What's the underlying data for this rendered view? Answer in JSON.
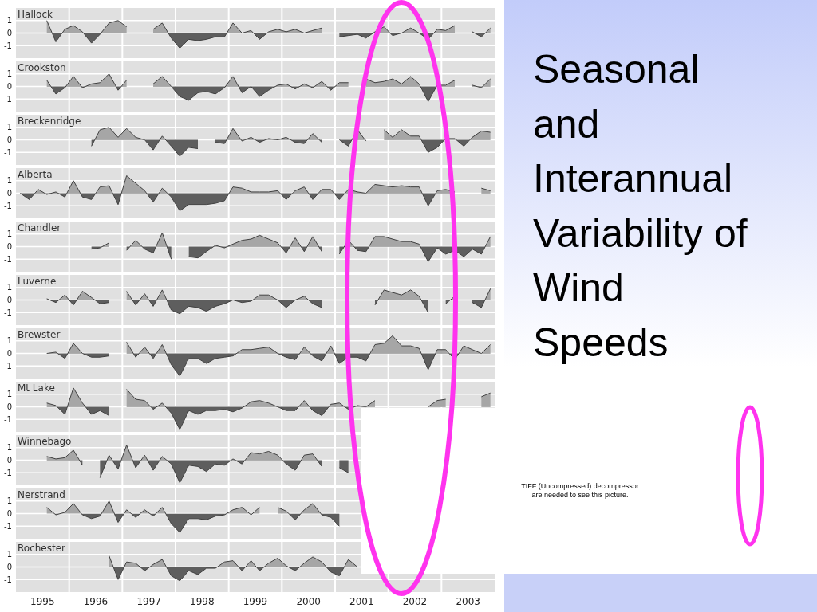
{
  "chart_data": [
    {
      "type": "area",
      "title": "Hallock",
      "xlim": [
        1995,
        2004
      ],
      "ylim": [
        -2,
        2
      ],
      "yticks": [
        -1,
        0,
        1
      ],
      "grid": true,
      "tick_labels": "y",
      "xticks": [
        {
          "value": 1996,
          "label": null
        },
        {
          "value": 1997,
          "label": null
        },
        {
          "value": 1998,
          "label": null
        },
        {
          "value": 1999,
          "label": null
        },
        {
          "value": 2000,
          "label": null
        },
        {
          "value": 2001,
          "label": null
        },
        {
          "value": 2002,
          "label": null
        },
        {
          "value": 2003,
          "label": null
        }
      ],
      "x": [
        1995.58,
        1995.75,
        1995.92,
        1996.08,
        1996.25,
        1996.42,
        1996.58,
        1996.75,
        1996.92,
        1997.08,
        1997.25,
        1997.42,
        1997.58,
        1997.75,
        1997.92,
        1998.08,
        1998.25,
        1998.42,
        1998.58,
        1998.75,
        1998.92,
        1999.08,
        1999.25,
        1999.42,
        1999.58,
        1999.75,
        1999.92,
        2000.08,
        2000.25,
        2000.42,
        2000.58,
        2000.75,
        2000.92,
        2001.08,
        2001.25,
        2001.42,
        2001.58,
        2001.75,
        2001.92,
        2002.08,
        2002.25,
        2002.42,
        2002.58,
        2002.75,
        2002.92,
        2003.08,
        2003.25,
        2003.42,
        2003.58,
        2003.75,
        2003.92
      ],
      "series": [
        {
          "color": "#a6a6a6",
          "values": [
            1.0,
            -0.7,
            0.3,
            0.6,
            0.1,
            -0.8,
            -0.1,
            0.8,
            1.0,
            0.5,
            null,
            null,
            0.3,
            0.8,
            -0.4,
            -1.2,
            -0.5,
            -0.6,
            -0.5,
            -0.3,
            -0.3,
            0.8,
            0.0,
            0.2,
            -0.5,
            0.1,
            0.3,
            0.1,
            0.3,
            0.0,
            0.2,
            0.4,
            null,
            -0.3,
            -0.2,
            -0.1,
            -0.4,
            0.1,
            0.5,
            -0.2,
            0.0,
            0.4,
            0.0,
            -0.5,
            0.3,
            0.2,
            0.6,
            null,
            0.1,
            -0.3,
            0.4
          ]
        }
      ]
    },
    {
      "type": "area",
      "title": "Crookston",
      "xlim": [
        1995,
        2004
      ],
      "ylim": [
        -2,
        2
      ],
      "yticks": [
        -1,
        0,
        1
      ],
      "grid": true,
      "tick_labels": "y",
      "xticks": [
        {
          "value": 1996,
          "label": null
        },
        {
          "value": 1997,
          "label": null
        },
        {
          "value": 1998,
          "label": null
        },
        {
          "value": 1999,
          "label": null
        },
        {
          "value": 2000,
          "label": null
        },
        {
          "value": 2001,
          "label": null
        },
        {
          "value": 2002,
          "label": null
        },
        {
          "value": 2003,
          "label": null
        }
      ],
      "x": [
        1995.58,
        1995.75,
        1995.92,
        1996.08,
        1996.25,
        1996.42,
        1996.58,
        1996.75,
        1996.92,
        1997.08,
        1997.25,
        1997.42,
        1997.58,
        1997.75,
        1997.92,
        1998.08,
        1998.25,
        1998.42,
        1998.58,
        1998.75,
        1998.92,
        1999.08,
        1999.25,
        1999.42,
        1999.58,
        1999.75,
        1999.92,
        2000.08,
        2000.25,
        2000.42,
        2000.58,
        2000.75,
        2000.92,
        2001.08,
        2001.25,
        2001.42,
        2001.58,
        2001.75,
        2001.92,
        2002.08,
        2002.25,
        2002.42,
        2002.58,
        2002.75,
        2002.92,
        2003.08,
        2003.25,
        2003.42,
        2003.58,
        2003.75,
        2003.92
      ],
      "series": [
        {
          "color": "#a6a6a6",
          "values": [
            0.5,
            -0.6,
            -0.1,
            0.8,
            -0.1,
            0.2,
            0.3,
            1.0,
            -0.3,
            0.5,
            null,
            null,
            0.2,
            0.8,
            0.0,
            -0.8,
            -1.1,
            -0.5,
            -0.4,
            -0.6,
            -0.1,
            0.8,
            -0.5,
            0.0,
            -0.8,
            -0.3,
            0.1,
            0.2,
            -0.2,
            0.2,
            -0.1,
            0.4,
            -0.3,
            0.3,
            0.3,
            null,
            0.6,
            0.3,
            0.4,
            0.6,
            0.2,
            0.8,
            0.2,
            -1.2,
            0.1,
            0.1,
            0.5,
            null,
            0.1,
            -0.1,
            0.6
          ]
        }
      ]
    },
    {
      "type": "area",
      "title": "Breckenridge",
      "xlim": [
        1995,
        2004
      ],
      "ylim": [
        -2,
        2
      ],
      "yticks": [
        -1,
        0,
        1
      ],
      "grid": true,
      "tick_labels": "y",
      "xticks": [
        {
          "value": 1996,
          "label": null
        },
        {
          "value": 1997,
          "label": null
        },
        {
          "value": 1998,
          "label": null
        },
        {
          "value": 1999,
          "label": null
        },
        {
          "value": 2000,
          "label": null
        },
        {
          "value": 2001,
          "label": null
        },
        {
          "value": 2002,
          "label": null
        },
        {
          "value": 2003,
          "label": null
        }
      ],
      "x": [
        1996.42,
        1996.58,
        1996.75,
        1996.92,
        1997.08,
        1997.25,
        1997.42,
        1997.58,
        1997.75,
        1997.92,
        1998.08,
        1998.25,
        1998.42,
        1998.58,
        1998.75,
        1998.92,
        1999.08,
        1999.25,
        1999.42,
        1999.58,
        1999.75,
        1999.92,
        2000.08,
        2000.25,
        2000.42,
        2000.58,
        2000.75,
        2000.92,
        2001.08,
        2001.25,
        2001.42,
        2001.58,
        2001.75,
        2001.92,
        2002.08,
        2002.25,
        2002.42,
        2002.58,
        2002.75,
        2002.92,
        2003.08,
        2003.25,
        2003.42,
        2003.58,
        2003.75,
        2003.92
      ],
      "series": [
        {
          "color": "#a6a6a6",
          "values": [
            -0.5,
            0.8,
            1.0,
            0.2,
            0.9,
            0.2,
            0.0,
            -0.8,
            0.3,
            -0.5,
            -1.3,
            -0.6,
            -0.7,
            null,
            -0.2,
            -0.3,
            0.9,
            -0.1,
            0.2,
            -0.2,
            0.1,
            0.0,
            0.2,
            -0.2,
            -0.3,
            0.5,
            -0.2,
            null,
            0.0,
            -0.5,
            0.8,
            -0.1,
            null,
            0.8,
            0.2,
            0.8,
            0.3,
            0.3,
            -1.0,
            -0.6,
            0.1,
            0.1,
            -0.5,
            0.2,
            0.7,
            0.6
          ]
        }
      ]
    },
    {
      "type": "area",
      "title": "Alberta",
      "xlim": [
        1995,
        2004
      ],
      "ylim": [
        -2,
        2
      ],
      "yticks": [
        -1,
        0,
        1
      ],
      "grid": true,
      "tick_labels": "y",
      "xticks": [
        {
          "value": 1996,
          "label": null
        },
        {
          "value": 1997,
          "label": null
        },
        {
          "value": 1998,
          "label": null
        },
        {
          "value": 1999,
          "label": null
        },
        {
          "value": 2000,
          "label": null
        },
        {
          "value": 2001,
          "label": null
        },
        {
          "value": 2002,
          "label": null
        },
        {
          "value": 2003,
          "label": null
        }
      ],
      "x": [
        1995.08,
        1995.25,
        1995.42,
        1995.58,
        1995.75,
        1995.92,
        1996.08,
        1996.25,
        1996.42,
        1996.58,
        1996.75,
        1996.92,
        1997.08,
        1997.25,
        1997.42,
        1997.58,
        1997.75,
        1997.92,
        1998.08,
        1998.25,
        1998.42,
        1998.58,
        1998.75,
        1998.92,
        1999.08,
        1999.25,
        1999.42,
        1999.58,
        1999.75,
        1999.92,
        2000.08,
        2000.25,
        2000.42,
        2000.58,
        2000.75,
        2000.92,
        2001.08,
        2001.25,
        2001.42,
        2001.58,
        2001.75,
        2001.92,
        2002.08,
        2002.25,
        2002.42,
        2002.58,
        2002.75,
        2002.92,
        2003.08,
        2003.25,
        2003.42,
        2003.58,
        2003.75,
        2003.92
      ],
      "series": [
        {
          "color": "#a6a6a6",
          "values": [
            0.0,
            -0.5,
            0.3,
            -0.1,
            0.1,
            -0.3,
            1.0,
            -0.3,
            -0.5,
            0.5,
            0.6,
            -0.9,
            1.4,
            0.8,
            0.2,
            -0.7,
            0.4,
            -0.3,
            -1.4,
            -0.9,
            -0.9,
            -0.9,
            -0.8,
            -0.6,
            0.5,
            0.4,
            0.1,
            0.1,
            0.1,
            0.2,
            -0.5,
            0.2,
            0.5,
            -0.5,
            0.3,
            0.3,
            -0.5,
            0.3,
            0.1,
            0.0,
            0.7,
            0.6,
            0.5,
            0.6,
            0.5,
            0.5,
            -1.0,
            0.2,
            0.3,
            0.1,
            null,
            null,
            0.4,
            0.2
          ]
        }
      ]
    },
    {
      "type": "area",
      "title": "Chandler",
      "xlim": [
        1995,
        2004
      ],
      "ylim": [
        -2,
        2
      ],
      "yticks": [
        -1,
        0,
        1
      ],
      "grid": true,
      "tick_labels": "y",
      "xticks": [
        {
          "value": 1996,
          "label": null
        },
        {
          "value": 1997,
          "label": null
        },
        {
          "value": 1998,
          "label": null
        },
        {
          "value": 1999,
          "label": null
        },
        {
          "value": 2000,
          "label": null
        },
        {
          "value": 2001,
          "label": null
        },
        {
          "value": 2002,
          "label": null
        },
        {
          "value": 2003,
          "label": null
        }
      ],
      "x": [
        1996.42,
        1996.58,
        1996.75,
        1996.92,
        1997.08,
        1997.25,
        1997.42,
        1997.58,
        1997.75,
        1997.92,
        1998.08,
        1998.25,
        1998.42,
        1998.58,
        1998.75,
        1998.92,
        1999.08,
        1999.25,
        1999.42,
        1999.58,
        1999.75,
        1999.92,
        2000.08,
        2000.25,
        2000.42,
        2000.58,
        2000.75,
        2000.92,
        2001.08,
        2001.25,
        2001.42,
        2001.58,
        2001.75,
        2001.92,
        2002.08,
        2002.25,
        2002.42,
        2002.58,
        2002.75,
        2002.92,
        2003.08,
        2003.25,
        2003.42,
        2003.58,
        2003.75,
        2003.92
      ],
      "series": [
        {
          "color": "#a6a6a6",
          "values": [
            -0.2,
            -0.1,
            0.3,
            null,
            -0.3,
            0.5,
            -0.2,
            -0.5,
            1.1,
            -1.0,
            null,
            -0.8,
            -0.9,
            -0.4,
            0.1,
            -0.1,
            0.2,
            0.5,
            0.6,
            0.9,
            0.6,
            0.3,
            -0.5,
            0.7,
            -0.4,
            0.8,
            -0.4,
            null,
            -0.6,
            0.5,
            -0.3,
            -0.4,
            0.8,
            0.8,
            0.6,
            0.4,
            0.4,
            0.2,
            -1.2,
            -0.1,
            -0.6,
            -0.3,
            -0.8,
            -0.2,
            -0.6,
            0.8
          ]
        }
      ]
    },
    {
      "type": "area",
      "title": "Luverne",
      "xlim": [
        1995,
        2004
      ],
      "ylim": [
        -2,
        2
      ],
      "yticks": [
        -1,
        0,
        1
      ],
      "grid": true,
      "tick_labels": "y",
      "xticks": [
        {
          "value": 1996,
          "label": null
        },
        {
          "value": 1997,
          "label": null
        },
        {
          "value": 1998,
          "label": null
        },
        {
          "value": 1999,
          "label": null
        },
        {
          "value": 2000,
          "label": null
        },
        {
          "value": 2001,
          "label": null
        },
        {
          "value": 2002,
          "label": null
        },
        {
          "value": 2003,
          "label": null
        }
      ],
      "x": [
        1995.58,
        1995.75,
        1995.92,
        1996.08,
        1996.25,
        1996.42,
        1996.58,
        1996.75,
        1996.92,
        1997.08,
        1997.25,
        1997.42,
        1997.58,
        1997.75,
        1997.92,
        1998.08,
        1998.25,
        1998.42,
        1998.58,
        1998.75,
        1998.92,
        1999.08,
        1999.25,
        1999.42,
        1999.58,
        1999.75,
        1999.92,
        2000.08,
        2000.25,
        2000.42,
        2000.58,
        2000.75,
        2000.92,
        2001.08,
        2001.25,
        2001.42,
        2001.58,
        2001.75,
        2001.92,
        2002.08,
        2002.25,
        2002.42,
        2002.58,
        2002.75,
        2002.92,
        2003.08,
        2003.25,
        2003.42,
        2003.58,
        2003.75,
        2003.92
      ],
      "series": [
        {
          "color": "#a6a6a6",
          "values": [
            0.1,
            -0.2,
            0.4,
            -0.4,
            0.7,
            0.2,
            -0.3,
            -0.2,
            null,
            0.7,
            -0.4,
            0.5,
            -0.5,
            0.8,
            -0.8,
            -1.1,
            -0.5,
            -0.6,
            -0.9,
            -0.5,
            -0.3,
            0.0,
            -0.2,
            -0.1,
            0.4,
            0.4,
            0.0,
            -0.6,
            0.0,
            0.3,
            -0.3,
            -0.6,
            null,
            null,
            null,
            null,
            null,
            -0.4,
            0.8,
            0.6,
            0.4,
            0.8,
            0.3,
            -1.0,
            null,
            -0.3,
            0.3,
            null,
            -0.2,
            -0.6,
            0.9
          ]
        }
      ]
    },
    {
      "type": "area",
      "title": "Brewster",
      "xlim": [
        1995,
        2004
      ],
      "ylim": [
        -2,
        2
      ],
      "yticks": [
        -1,
        0,
        1
      ],
      "grid": true,
      "tick_labels": "y",
      "xticks": [
        {
          "value": 1996,
          "label": null
        },
        {
          "value": 1997,
          "label": null
        },
        {
          "value": 1998,
          "label": null
        },
        {
          "value": 1999,
          "label": null
        },
        {
          "value": 2000,
          "label": null
        },
        {
          "value": 2001,
          "label": null
        },
        {
          "value": 2002,
          "label": null
        },
        {
          "value": 2003,
          "label": null
        }
      ],
      "x": [
        1995.58,
        1995.75,
        1995.92,
        1996.08,
        1996.25,
        1996.42,
        1996.58,
        1996.75,
        1996.92,
        1997.08,
        1997.25,
        1997.42,
        1997.58,
        1997.75,
        1997.92,
        1998.08,
        1998.25,
        1998.42,
        1998.58,
        1998.75,
        1998.92,
        1999.08,
        1999.25,
        1999.42,
        1999.58,
        1999.75,
        1999.92,
        2000.08,
        2000.25,
        2000.42,
        2000.58,
        2000.75,
        2000.92,
        2001.08,
        2001.25,
        2001.42,
        2001.58,
        2001.75,
        2001.92,
        2002.08,
        2002.25,
        2002.42,
        2002.58,
        2002.75,
        2002.92,
        2003.08,
        2003.25,
        2003.42,
        2003.58,
        2003.75,
        2003.92
      ],
      "series": [
        {
          "color": "#a6a6a6",
          "values": [
            0.0,
            0.1,
            -0.4,
            0.8,
            0.0,
            -0.3,
            -0.3,
            -0.2,
            null,
            0.9,
            -0.3,
            0.5,
            -0.4,
            0.7,
            -0.9,
            -1.8,
            -0.4,
            -0.4,
            -0.8,
            -0.4,
            -0.3,
            -0.2,
            0.3,
            0.3,
            0.4,
            0.5,
            0.0,
            -0.3,
            -0.5,
            0.5,
            -0.2,
            -0.6,
            0.6,
            -0.8,
            -0.3,
            -0.3,
            -0.6,
            0.7,
            0.8,
            1.4,
            0.6,
            0.6,
            0.4,
            -1.3,
            0.3,
            0.3,
            -0.5,
            0.6,
            0.3,
            0.0,
            0.7
          ]
        }
      ]
    },
    {
      "type": "area",
      "title": "Mt Lake",
      "xlim": [
        1995,
        2004
      ],
      "ylim": [
        -2,
        2
      ],
      "yticks": [
        -1,
        0,
        1
      ],
      "grid": true,
      "tick_labels": "y",
      "xticks": [
        {
          "value": 1996,
          "label": null
        },
        {
          "value": 1997,
          "label": null
        },
        {
          "value": 1998,
          "label": null
        },
        {
          "value": 1999,
          "label": null
        },
        {
          "value": 2000,
          "label": null
        },
        {
          "value": 2001,
          "label": null
        },
        {
          "value": 2002,
          "label": null
        },
        {
          "value": 2003,
          "label": null
        }
      ],
      "x": [
        1995.58,
        1995.75,
        1995.92,
        1996.08,
        1996.25,
        1996.42,
        1996.58,
        1996.75,
        1996.92,
        1997.08,
        1997.25,
        1997.42,
        1997.58,
        1997.75,
        1997.92,
        1998.08,
        1998.25,
        1998.42,
        1998.58,
        1998.75,
        1998.92,
        1999.08,
        1999.25,
        1999.42,
        1999.58,
        1999.75,
        1999.92,
        2000.08,
        2000.25,
        2000.42,
        2000.58,
        2000.75,
        2000.92,
        2001.08,
        2001.25,
        2001.42,
        2001.58,
        2001.75,
        2001.92,
        2002.08,
        2002.25,
        2002.42,
        2002.58,
        2002.75,
        2002.92,
        2003.08,
        2003.25,
        2003.42,
        2003.58,
        2003.75,
        2003.92
      ],
      "series": [
        {
          "color": "#a6a6a6",
          "values": [
            0.3,
            0.1,
            -0.6,
            1.5,
            0.3,
            -0.6,
            -0.3,
            -0.7,
            null,
            1.4,
            0.6,
            0.5,
            -0.2,
            0.3,
            -0.5,
            -1.8,
            -0.3,
            -0.6,
            -0.3,
            -0.3,
            -0.2,
            -0.4,
            -0.1,
            0.4,
            0.5,
            0.3,
            0.0,
            -0.3,
            -0.3,
            0.5,
            -0.3,
            -0.7,
            0.2,
            0.3,
            -0.2,
            0.1,
            0.0,
            0.5,
            null,
            null,
            null,
            null,
            null,
            0.0,
            0.5,
            0.6,
            null,
            null,
            null,
            0.8,
            1.1
          ]
        }
      ]
    },
    {
      "type": "area",
      "title": "Winnebago",
      "xlim": [
        1995,
        2004
      ],
      "ylim": [
        -2,
        2
      ],
      "yticks": [
        -1,
        0,
        1
      ],
      "grid": true,
      "tick_labels": "y",
      "xticks": [
        {
          "value": 1996,
          "label": null
        },
        {
          "value": 1997,
          "label": null
        },
        {
          "value": 1998,
          "label": null
        },
        {
          "value": 1999,
          "label": null
        },
        {
          "value": 2000,
          "label": null
        },
        {
          "value": 2001,
          "label": null
        }
      ],
      "x": [
        1995.58,
        1995.75,
        1995.92,
        1996.08,
        1996.25,
        1996.42,
        1996.58,
        1996.75,
        1996.92,
        1997.08,
        1997.25,
        1997.42,
        1997.58,
        1997.75,
        1997.92,
        1998.08,
        1998.25,
        1998.42,
        1998.58,
        1998.75,
        1998.92,
        1999.08,
        1999.25,
        1999.42,
        1999.58,
        1999.75,
        1999.92,
        2000.08,
        2000.25,
        2000.42,
        2000.58,
        2000.75,
        2000.92,
        2001.08,
        2001.25
      ],
      "series": [
        {
          "color": "#a6a6a6",
          "values": [
            0.3,
            0.1,
            0.2,
            0.8,
            -0.4,
            null,
            -1.4,
            0.4,
            -0.7,
            1.2,
            -0.6,
            0.4,
            -0.8,
            0.3,
            -0.3,
            -1.8,
            -0.4,
            -0.5,
            -0.9,
            -0.3,
            -0.4,
            0.1,
            -0.3,
            0.6,
            0.5,
            0.7,
            0.4,
            -0.3,
            -0.8,
            0.4,
            0.5,
            -0.5,
            null,
            -0.6,
            -1.0
          ]
        }
      ]
    },
    {
      "type": "area",
      "title": "Nerstrand",
      "xlim": [
        1995,
        2004
      ],
      "ylim": [
        -2,
        2
      ],
      "yticks": [
        -1,
        0,
        1
      ],
      "grid": true,
      "tick_labels": "y",
      "xticks": [
        {
          "value": 1996,
          "label": null
        },
        {
          "value": 1997,
          "label": null
        },
        {
          "value": 1998,
          "label": null
        },
        {
          "value": 1999,
          "label": null
        },
        {
          "value": 2000,
          "label": null
        },
        {
          "value": 2001,
          "label": null
        }
      ],
      "x": [
        1995.58,
        1995.75,
        1995.92,
        1996.08,
        1996.25,
        1996.42,
        1996.58,
        1996.75,
        1996.92,
        1997.08,
        1997.25,
        1997.42,
        1997.58,
        1997.75,
        1997.92,
        1998.08,
        1998.25,
        1998.42,
        1998.58,
        1998.75,
        1998.92,
        1999.08,
        1999.25,
        1999.42,
        1999.58,
        1999.75,
        1999.92,
        2000.08,
        2000.25,
        2000.42,
        2000.58,
        2000.75,
        2000.92,
        2001.08
      ],
      "series": [
        {
          "color": "#a6a6a6",
          "values": [
            0.5,
            -0.1,
            0.1,
            0.8,
            -0.1,
            -0.4,
            -0.2,
            1.0,
            -0.7,
            0.3,
            -0.3,
            0.3,
            -0.2,
            0.5,
            -0.8,
            -1.5,
            -0.4,
            -0.4,
            -0.5,
            -0.2,
            -0.1,
            0.3,
            0.5,
            -0.1,
            0.5,
            null,
            0.5,
            0.2,
            -0.5,
            0.3,
            0.8,
            -0.1,
            -0.3,
            -1.0
          ]
        }
      ]
    },
    {
      "type": "area",
      "title": "Rochester",
      "xlim": [
        1995,
        2004
      ],
      "ylim": [
        -2,
        2
      ],
      "yticks": [
        -1,
        0,
        1
      ],
      "grid": true,
      "xticks": [
        {
          "value": 1995.5,
          "label": "1995"
        },
        {
          "value": 1996.5,
          "label": "1996"
        },
        {
          "value": 1997.5,
          "label": "1997"
        },
        {
          "value": 1998.5,
          "label": "1998"
        },
        {
          "value": 1999.5,
          "label": "1999"
        },
        {
          "value": 2000.5,
          "label": "2000"
        },
        {
          "value": 2001.5,
          "label": "2001"
        },
        {
          "value": 2002.5,
          "label": "2002"
        },
        {
          "value": 2003.5,
          "label": "2003"
        },
        {
          "value": 1996,
          "label": null
        },
        {
          "value": 1997,
          "label": null
        },
        {
          "value": 1998,
          "label": null
        },
        {
          "value": 1999,
          "label": null
        },
        {
          "value": 2000,
          "label": null
        },
        {
          "value": 2001,
          "label": null
        },
        {
          "value": 2002,
          "label": null
        },
        {
          "value": 2003,
          "label": null
        }
      ],
      "x": [
        1996.75,
        1996.92,
        1997.08,
        1997.25,
        1997.42,
        1997.58,
        1997.75,
        1997.92,
        1998.08,
        1998.25,
        1998.42,
        1998.58,
        1998.75,
        1998.92,
        1999.08,
        1999.25,
        1999.42,
        1999.58,
        1999.75,
        1999.92,
        2000.08,
        2000.25,
        2000.42,
        2000.58,
        2000.75,
        2000.92,
        2001.08,
        2001.25,
        2001.42
      ],
      "series": [
        {
          "color": "#a6a6a6",
          "values": [
            0.9,
            -1.0,
            0.4,
            0.3,
            -0.3,
            0.2,
            0.6,
            -0.7,
            -1.1,
            -0.3,
            -0.6,
            -0.1,
            -0.1,
            0.4,
            0.5,
            -0.3,
            0.5,
            -0.3,
            0.3,
            0.7,
            0.1,
            -0.3,
            0.3,
            0.8,
            0.4,
            -0.4,
            -0.7,
            0.6,
            0.0
          ]
        }
      ]
    },
    {
      "type": "other",
      "title": "Seasonal\nand\nInterannual\nVariability of\nWind\nSpeeds",
      "annotations": [
        "TIFF (Uncompressed) decompressor",
        "are needed to see this picture."
      ]
    }
  ]
}
